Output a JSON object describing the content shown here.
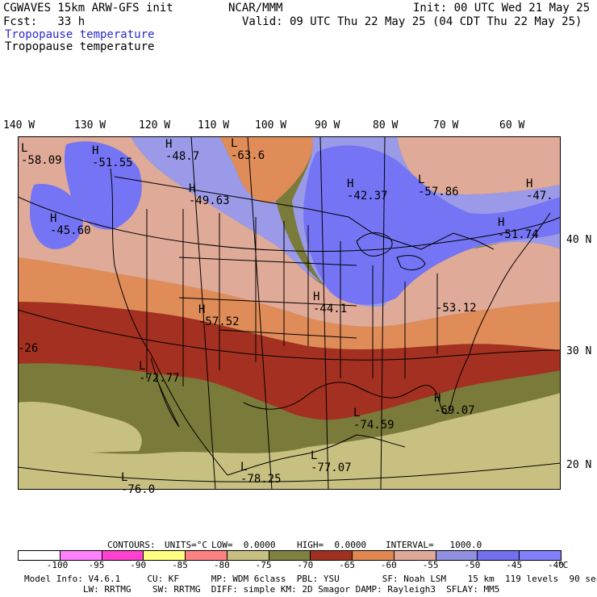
{
  "header": {
    "model_title": "CGWAVES 15km ARW-GFS init",
    "forecast": "Fcst:   33 h",
    "center": "NCAR/MMM",
    "init": "Init: 00 UTC Wed 21 May 25",
    "valid": "Valid: 09 UTC Thu 22 May 25 (04 CDT Thu 22 May 25)",
    "field_title_1": "Tropopause temperature",
    "field_title_2": "Tropopause temperature"
  },
  "map": {
    "lon_ticks": [
      "140 W",
      "130 W",
      "120 W",
      "110 W",
      "100 W",
      "90 W",
      "80 W",
      "70 W",
      "60 W"
    ],
    "lat_ticks": [
      "40 N",
      "30 N",
      "20 N"
    ],
    "labels": [
      {
        "type": "L",
        "value": "-58.09"
      },
      {
        "type": "H",
        "value": "-51.55"
      },
      {
        "type": "H",
        "value": "-48.7"
      },
      {
        "type": "L",
        "value": "-63.6"
      },
      {
        "type": "H",
        "value": "-49.63"
      },
      {
        "type": "H",
        "value": "-42.37"
      },
      {
        "type": "L",
        "value": "-57.86"
      },
      {
        "type": "H",
        "value": "-47."
      },
      {
        "type": "H",
        "value": "-45.60"
      },
      {
        "type": "H",
        "value": "-51.74"
      },
      {
        "type": "H",
        "value": "-44.1"
      },
      {
        "type": "H",
        "value": "-57.52"
      },
      {
        "type": "",
        "value": "-53.12"
      },
      {
        "type": "",
        "value": "-26"
      },
      {
        "type": "L",
        "value": "-72.77"
      },
      {
        "type": "H",
        "value": "-69.07"
      },
      {
        "type": "L",
        "value": "-74.59"
      },
      {
        "type": "L",
        "value": "-77.07"
      },
      {
        "type": "L",
        "value": "-78.25"
      },
      {
        "type": "L",
        "value": "-76.0"
      }
    ]
  },
  "contour_info": {
    "contours": "CONTOURS:",
    "units": "UNITS=°C",
    "low": "LOW=  0.0000",
    "high": "HIGH=  0.0000",
    "interval": "INTERVAL=   1000.0"
  },
  "legend": {
    "ticks": [
      "-100",
      "-95",
      "-90",
      "-85",
      "-80",
      "-75",
      "-70",
      "-65",
      "-60",
      "-55",
      "-50",
      "-45",
      "-40",
      "°C"
    ],
    "colors": [
      "#ffffff",
      "#ff80ff",
      "#ff40d0",
      "#ffff80",
      "#ff8080",
      "#c8c080",
      "#808040",
      "#a03020",
      "#e08850",
      "#e0a898",
      "#9090e0",
      "#7070f0",
      "#8080ff"
    ]
  },
  "footer": {
    "line1": "Model Info: V4.6.1     CU: KF      MP: WDM 6class  PBL: YSU        SF: Noah LSM    15 km  119 levels  90 sec",
    "line2": "           LW: RRTMG    SW: RRTMG  DIFF: simple KM: 2D Smagor DAMP: Rayleigh3  SFLAY: MM5"
  },
  "colors": {
    "olive": "#7a7a3a",
    "khaki": "#c8c080",
    "darkred": "#a33020",
    "orange": "#e08c58",
    "salmon": "#e0aa98",
    "lavender": "#9a9ae8",
    "blue": "#7474f4"
  }
}
